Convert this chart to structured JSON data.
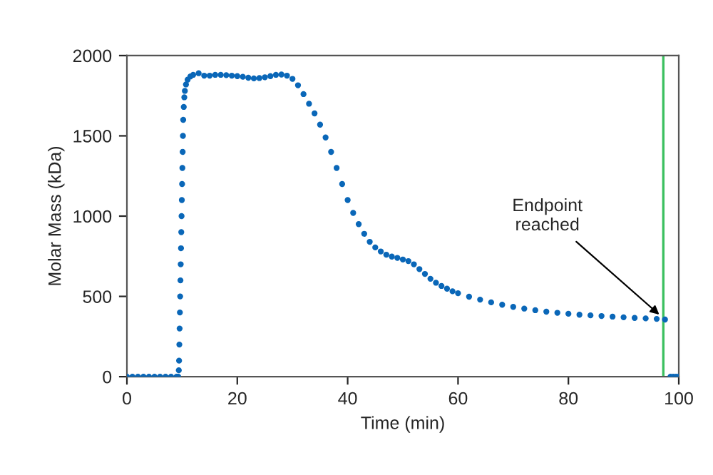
{
  "chart_data": {
    "type": "scatter",
    "xlabel": "Time (min)",
    "ylabel": "Molar Mass (kDa)",
    "xlim": [
      0,
      100
    ],
    "ylim": [
      0,
      2000
    ],
    "xticks": [
      0,
      20,
      40,
      60,
      80,
      100
    ],
    "yticks": [
      0,
      500,
      1000,
      1500,
      2000
    ],
    "grid": false,
    "marker": "circle",
    "series": [
      {
        "color": "#0a67b8",
        "x": [
          0,
          1,
          2,
          3,
          4,
          5,
          6,
          7,
          8,
          9,
          9.3,
          9.4,
          9.45,
          9.5,
          9.55,
          9.6,
          9.65,
          9.7,
          9.75,
          9.8,
          9.85,
          9.9,
          9.95,
          10.0,
          10.05,
          10.1,
          10.15,
          10.2,
          10.3,
          10.4,
          10.5,
          10.7,
          11,
          11.5,
          12,
          13,
          14,
          15,
          16,
          17,
          18,
          19,
          20,
          21,
          22,
          23,
          24,
          25,
          26,
          27,
          28,
          29,
          30,
          31,
          32,
          33,
          34,
          35,
          36,
          37,
          38,
          39,
          40,
          41,
          42,
          43,
          44,
          45,
          46,
          47,
          48,
          49,
          50,
          51,
          52,
          53,
          54,
          55,
          56,
          57,
          58,
          59,
          60,
          62,
          64,
          66,
          68,
          70,
          72,
          74,
          76,
          78,
          80,
          82,
          84,
          86,
          88,
          90,
          92,
          94,
          96,
          97.5,
          98.5,
          99,
          99.5,
          100
        ],
        "values": [
          0,
          0,
          0,
          0,
          0,
          0,
          0,
          0,
          0,
          0,
          0,
          40,
          100,
          200,
          300,
          400,
          500,
          600,
          700,
          800,
          900,
          1000,
          1100,
          1200,
          1300,
          1400,
          1500,
          1600,
          1680,
          1740,
          1780,
          1820,
          1850,
          1870,
          1880,
          1890,
          1875,
          1875,
          1880,
          1880,
          1878,
          1875,
          1872,
          1868,
          1862,
          1858,
          1860,
          1865,
          1872,
          1880,
          1882,
          1875,
          1855,
          1815,
          1760,
          1700,
          1640,
          1570,
          1490,
          1400,
          1300,
          1200,
          1100,
          1020,
          950,
          890,
          840,
          805,
          780,
          760,
          748,
          740,
          730,
          720,
          700,
          670,
          640,
          610,
          585,
          565,
          548,
          532,
          520,
          498,
          480,
          463,
          448,
          435,
          424,
          414,
          405,
          398,
          392,
          386,
          382,
          378,
          374,
          370,
          366,
          363,
          360,
          356,
          0,
          0,
          0,
          0
        ]
      }
    ],
    "ref_lines": [
      {
        "axis": "x",
        "value": 97.2,
        "color": "#3cc060"
      }
    ],
    "annotations": [
      {
        "text": "Endpoint\nreached",
        "x": 97,
        "y": 370
      }
    ]
  }
}
